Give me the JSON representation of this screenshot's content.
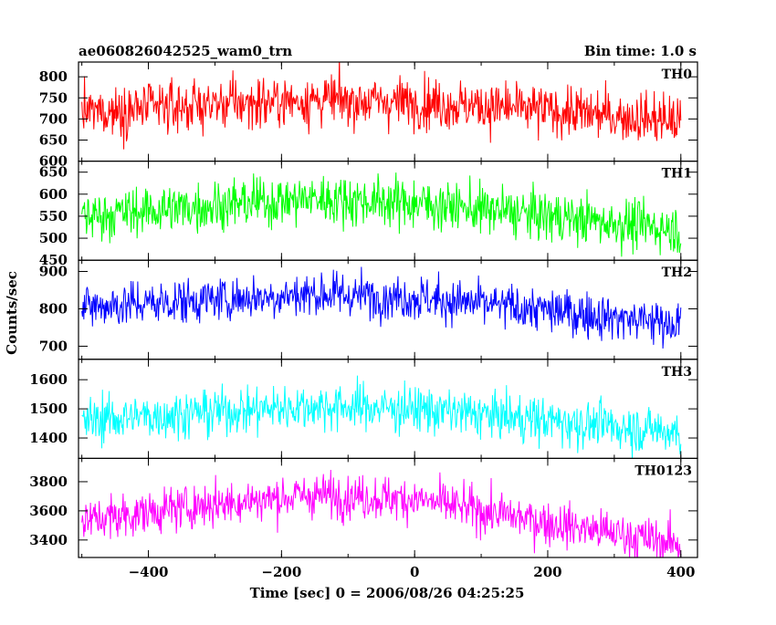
{
  "header": {
    "title": "ae060826042525_wam0_trn",
    "bin_time": "Bin time: 1.0 s"
  },
  "chart_data": {
    "type": "line",
    "xlabel": "Time [sec] 0 = 2006/08/26 04:25:25",
    "ylabel": "Counts/sec",
    "xlim": [
      -505,
      425
    ],
    "x_range_data": [
      -500,
      400
    ],
    "bin_time_s": 1.0,
    "x_ticks": [
      -400,
      -200,
      0,
      200,
      400
    ],
    "panels": [
      {
        "label": "TH0",
        "color": "#ff0000",
        "ylim": [
          600,
          835
        ],
        "y_ticks": [
          600,
          650,
          700,
          750,
          800
        ],
        "trend": [
          [
            -500,
            715
          ],
          [
            -300,
            735
          ],
          [
            -150,
            745
          ],
          [
            0,
            740
          ],
          [
            200,
            720
          ],
          [
            400,
            695
          ]
        ],
        "noise_sd": 30
      },
      {
        "label": "TH1",
        "color": "#00ff00",
        "ylim": [
          450,
          675
        ],
        "y_ticks": [
          450,
          500,
          550,
          600,
          650
        ],
        "trend": [
          [
            -500,
            550
          ],
          [
            -300,
            575
          ],
          [
            -150,
            590
          ],
          [
            0,
            580
          ],
          [
            200,
            550
          ],
          [
            400,
            520
          ]
        ],
        "noise_sd": 28
      },
      {
        "label": "TH2",
        "color": "#0000ff",
        "ylim": [
          665,
          930
        ],
        "y_ticks": [
          700,
          800,
          900
        ],
        "trend": [
          [
            -500,
            805
          ],
          [
            -300,
            825
          ],
          [
            -150,
            840
          ],
          [
            0,
            830
          ],
          [
            200,
            795
          ],
          [
            400,
            760
          ]
        ],
        "noise_sd": 30
      },
      {
        "label": "TH3",
        "color": "#00ffff",
        "ylim": [
          1330,
          1670
        ],
        "y_ticks": [
          1400,
          1500,
          1600
        ],
        "trend": [
          [
            -500,
            1460
          ],
          [
            -300,
            1490
          ],
          [
            -150,
            1510
          ],
          [
            0,
            1500
          ],
          [
            200,
            1460
          ],
          [
            400,
            1420
          ]
        ],
        "noise_sd": 40
      },
      {
        "label": "TH0123",
        "color": "#ff00ff",
        "ylim": [
          3280,
          3960
        ],
        "y_ticks": [
          3400,
          3600,
          3800
        ],
        "trend": [
          [
            -500,
            3530
          ],
          [
            -300,
            3650
          ],
          [
            -150,
            3710
          ],
          [
            0,
            3680
          ],
          [
            200,
            3520
          ],
          [
            400,
            3370
          ]
        ],
        "noise_sd": 75
      }
    ]
  }
}
